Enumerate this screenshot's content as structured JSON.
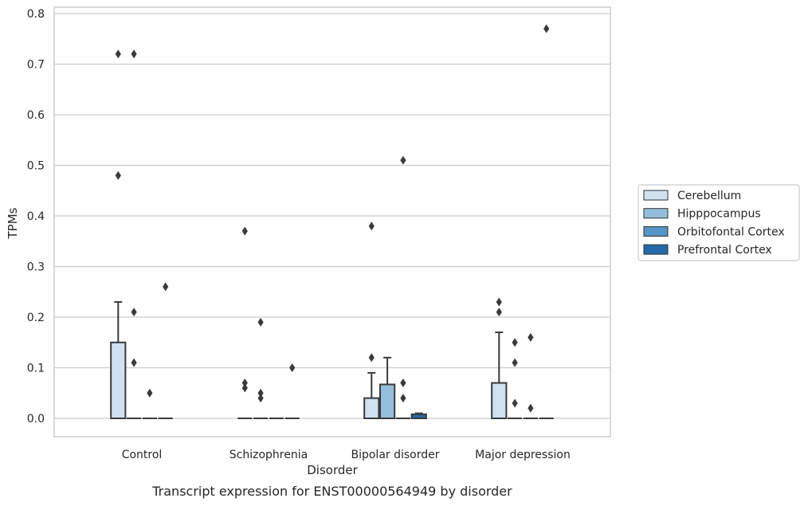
{
  "chart_data": {
    "type": "box",
    "caption": "Transcript expression for ENST00000564949 by disorder",
    "xlabel": "Disorder",
    "ylabel": "TPMs",
    "ylim": [
      -0.04,
      0.8125
    ],
    "yticks": [
      "0.0",
      "0.1",
      "0.2",
      "0.3",
      "0.4",
      "0.5",
      "0.6",
      "0.7",
      "0.8"
    ],
    "grid": "horizontal",
    "legend_position": "right",
    "categories": [
      "Control",
      "Schizophrenia",
      "Bipolar disorder",
      "Major depression"
    ],
    "series": [
      {
        "name": "Cerebellum",
        "color": "#d0e1f0",
        "boxes": [
          {
            "q1": 0.0,
            "median": 0.0,
            "q3": 0.15,
            "whisker_low": 0.0,
            "whisker_high": 0.23,
            "outliers": [
              0.48,
              0.72
            ]
          },
          {
            "q1": 0.0,
            "median": 0.0,
            "q3": 0.0,
            "whisker_low": 0.0,
            "whisker_high": 0.0,
            "outliers": [
              0.06,
              0.07,
              0.37
            ]
          },
          {
            "q1": 0.0,
            "median": 0.0,
            "q3": 0.04,
            "whisker_low": 0.0,
            "whisker_high": 0.09,
            "outliers": [
              0.12,
              0.38
            ]
          },
          {
            "q1": 0.0,
            "median": 0.0,
            "q3": 0.07,
            "whisker_low": 0.0,
            "whisker_high": 0.17,
            "outliers": [
              0.21,
              0.23
            ]
          }
        ]
      },
      {
        "name": "Hipppocampus",
        "color": "#94bfdc",
        "boxes": [
          {
            "q1": 0.0,
            "median": 0.0,
            "q3": 0.0,
            "whisker_low": 0.0,
            "whisker_high": 0.0,
            "outliers": [
              0.11,
              0.21,
              0.72
            ]
          },
          {
            "q1": 0.0,
            "median": 0.0,
            "q3": 0.0,
            "whisker_low": 0.0,
            "whisker_high": 0.0,
            "outliers": [
              0.04,
              0.05,
              0.19
            ]
          },
          {
            "q1": 0.0,
            "median": 0.0,
            "q3": 0.067,
            "whisker_low": 0.0,
            "whisker_high": 0.12,
            "outliers": []
          },
          {
            "q1": 0.0,
            "median": 0.0,
            "q3": 0.0,
            "whisker_low": 0.0,
            "whisker_high": 0.0,
            "outliers": [
              0.03,
              0.11,
              0.15
            ]
          }
        ]
      },
      {
        "name": "Orbitofontal Cortex",
        "color": "#5596c6",
        "boxes": [
          {
            "q1": 0.0,
            "median": 0.0,
            "q3": 0.0,
            "whisker_low": 0.0,
            "whisker_high": 0.0,
            "outliers": [
              0.05
            ]
          },
          {
            "q1": 0.0,
            "median": 0.0,
            "q3": 0.0,
            "whisker_low": 0.0,
            "whisker_high": 0.0,
            "outliers": []
          },
          {
            "q1": 0.0,
            "median": 0.0,
            "q3": 0.0,
            "whisker_low": 0.0,
            "whisker_high": 0.0,
            "outliers": [
              0.04,
              0.07,
              0.51
            ]
          },
          {
            "q1": 0.0,
            "median": 0.0,
            "q3": 0.0,
            "whisker_low": 0.0,
            "whisker_high": 0.0,
            "outliers": [
              0.02,
              0.16
            ]
          }
        ]
      },
      {
        "name": "Prefrontal Cortex",
        "color": "#2369a8",
        "boxes": [
          {
            "q1": 0.0,
            "median": 0.0,
            "q3": 0.0,
            "whisker_low": 0.0,
            "whisker_high": 0.0,
            "outliers": [
              0.26
            ]
          },
          {
            "q1": 0.0,
            "median": 0.0,
            "q3": 0.0,
            "whisker_low": 0.0,
            "whisker_high": 0.0,
            "outliers": [
              0.1
            ]
          },
          {
            "q1": 0.0,
            "median": 0.0,
            "q3": 0.008,
            "whisker_low": 0.0,
            "whisker_high": 0.01,
            "outliers": []
          },
          {
            "q1": 0.0,
            "median": 0.0,
            "q3": 0.0,
            "whisker_low": 0.0,
            "whisker_high": 0.0,
            "outliers": [
              0.77
            ]
          }
        ]
      }
    ]
  }
}
